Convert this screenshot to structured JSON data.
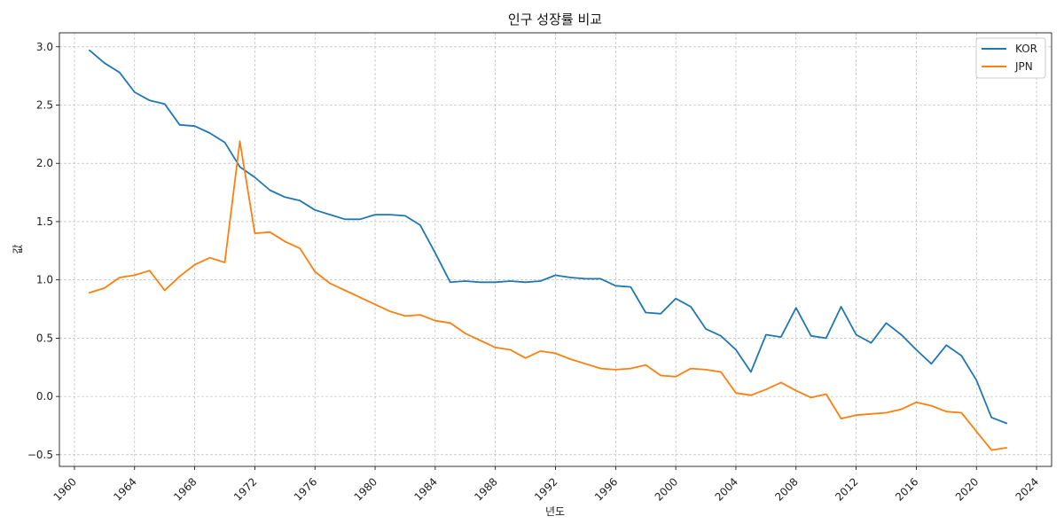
{
  "chart_data": {
    "type": "line",
    "title": "인구 성장률 비교",
    "xlabel": "년도",
    "ylabel": "값",
    "xlim": [
      1959,
      2025
    ],
    "ylim": [
      -0.6,
      3.12
    ],
    "xticks": [
      1960,
      1964,
      1968,
      1972,
      1976,
      1980,
      1984,
      1988,
      1992,
      1996,
      2000,
      2004,
      2008,
      2012,
      2016,
      2020,
      2024
    ],
    "yticks": [
      -0.5,
      0.0,
      0.5,
      1.0,
      1.5,
      2.0,
      2.5,
      3.0
    ],
    "ytick_labels": [
      "−0.5",
      "0.0",
      "0.5",
      "1.0",
      "1.5",
      "2.0",
      "2.5",
      "3.0"
    ],
    "grid": true,
    "legend_position": "top-right",
    "x": [
      1961,
      1962,
      1963,
      1964,
      1965,
      1966,
      1967,
      1968,
      1969,
      1970,
      1971,
      1972,
      1973,
      1974,
      1975,
      1976,
      1977,
      1978,
      1979,
      1980,
      1981,
      1982,
      1983,
      1984,
      1985,
      1986,
      1987,
      1988,
      1989,
      1990,
      1991,
      1992,
      1993,
      1994,
      1995,
      1996,
      1997,
      1998,
      1999,
      2000,
      2001,
      2002,
      2003,
      2004,
      2005,
      2006,
      2007,
      2008,
      2009,
      2010,
      2011,
      2012,
      2013,
      2014,
      2015,
      2016,
      2017,
      2018,
      2019,
      2020,
      2021,
      2022
    ],
    "series": [
      {
        "name": "KOR",
        "color": "#1f77b4",
        "values": [
          2.97,
          2.86,
          2.78,
          2.61,
          2.54,
          2.51,
          2.33,
          2.32,
          2.26,
          2.18,
          1.97,
          1.88,
          1.77,
          1.71,
          1.68,
          1.6,
          1.56,
          1.52,
          1.52,
          1.56,
          1.56,
          1.55,
          1.47,
          1.23,
          0.98,
          0.99,
          0.98,
          0.98,
          0.99,
          0.98,
          0.99,
          1.04,
          1.02,
          1.01,
          1.01,
          0.95,
          0.94,
          0.72,
          0.71,
          0.84,
          0.77,
          0.58,
          0.52,
          0.4,
          0.21,
          0.53,
          0.51,
          0.76,
          0.52,
          0.5,
          0.77,
          0.53,
          0.46,
          0.63,
          0.53,
          0.4,
          0.28,
          0.44,
          0.35,
          0.14,
          -0.18,
          -0.23
        ]
      },
      {
        "name": "JPN",
        "color": "#ff7f0e",
        "values": [
          0.89,
          0.93,
          1.02,
          1.04,
          1.08,
          0.91,
          1.03,
          1.13,
          1.19,
          1.15,
          2.19,
          1.4,
          1.41,
          1.33,
          1.27,
          1.07,
          0.97,
          0.91,
          0.85,
          0.79,
          0.73,
          0.69,
          0.7,
          0.65,
          0.63,
          0.54,
          0.48,
          0.42,
          0.4,
          0.33,
          0.39,
          0.37,
          0.32,
          0.28,
          0.24,
          0.23,
          0.24,
          0.27,
          0.18,
          0.17,
          0.24,
          0.23,
          0.21,
          0.03,
          0.01,
          0.06,
          0.12,
          0.05,
          -0.01,
          0.02,
          -0.19,
          -0.16,
          -0.15,
          -0.14,
          -0.11,
          -0.05,
          -0.08,
          -0.13,
          -0.14,
          -0.3,
          -0.46,
          -0.44
        ]
      }
    ]
  }
}
